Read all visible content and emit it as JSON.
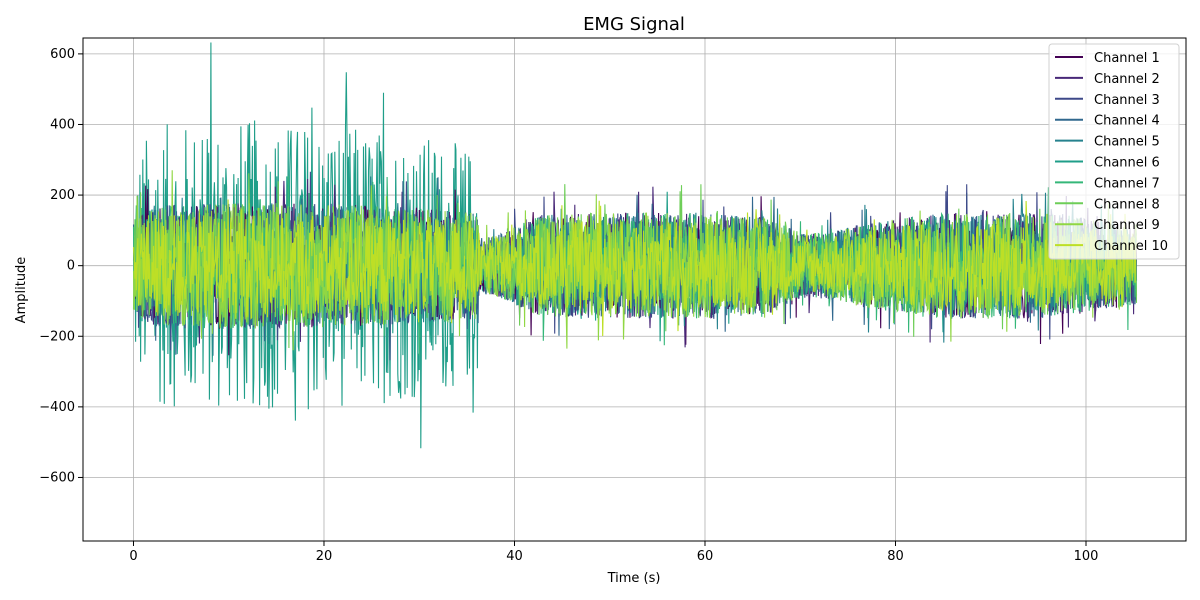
{
  "chart_data": {
    "type": "line",
    "title": "EMG Signal",
    "xlabel": "Time (s)",
    "ylabel": "Amplitude",
    "xlim": [
      -5.3,
      110.5
    ],
    "ylim": [
      -780,
      645
    ],
    "xticks": [
      0,
      20,
      40,
      60,
      80,
      100
    ],
    "yticks": [
      -600,
      -400,
      -200,
      0,
      200,
      400,
      600
    ],
    "grid": true,
    "legend_position": "top-right",
    "signal_duration": 105.3,
    "series": [
      {
        "name": "Channel 1",
        "color": "#440154"
      },
      {
        "name": "Channel 2",
        "color": "#482878"
      },
      {
        "name": "Channel 3",
        "color": "#3e4989"
      },
      {
        "name": "Channel 4",
        "color": "#31688e"
      },
      {
        "name": "Channel 5",
        "color": "#26828e"
      },
      {
        "name": "Channel 6",
        "color": "#1f9e89"
      },
      {
        "name": "Channel 7",
        "color": "#35b779"
      },
      {
        "name": "Channel 8",
        "color": "#6ece58"
      },
      {
        "name": "Channel 9",
        "color": "#90d743"
      },
      {
        "name": "Channel 10",
        "color": "#bddf26"
      }
    ],
    "envelope": {
      "t": [
        0,
        2,
        10,
        20,
        30,
        36.2,
        36.3,
        38,
        40,
        43,
        50,
        60,
        67,
        70,
        73,
        77,
        85,
        95,
        100,
        105.3
      ],
      "amp": [
        130,
        170,
        180,
        175,
        165,
        150,
        80,
        85,
        110,
        145,
        150,
        150,
        135,
        90,
        95,
        120,
        150,
        150,
        135,
        110
      ],
      "amp_ch6": [
        320,
        400,
        420,
        410,
        380,
        330,
        0,
        0,
        0,
        0,
        0,
        0,
        0,
        0,
        0,
        0,
        0,
        0,
        0,
        0
      ]
    }
  }
}
